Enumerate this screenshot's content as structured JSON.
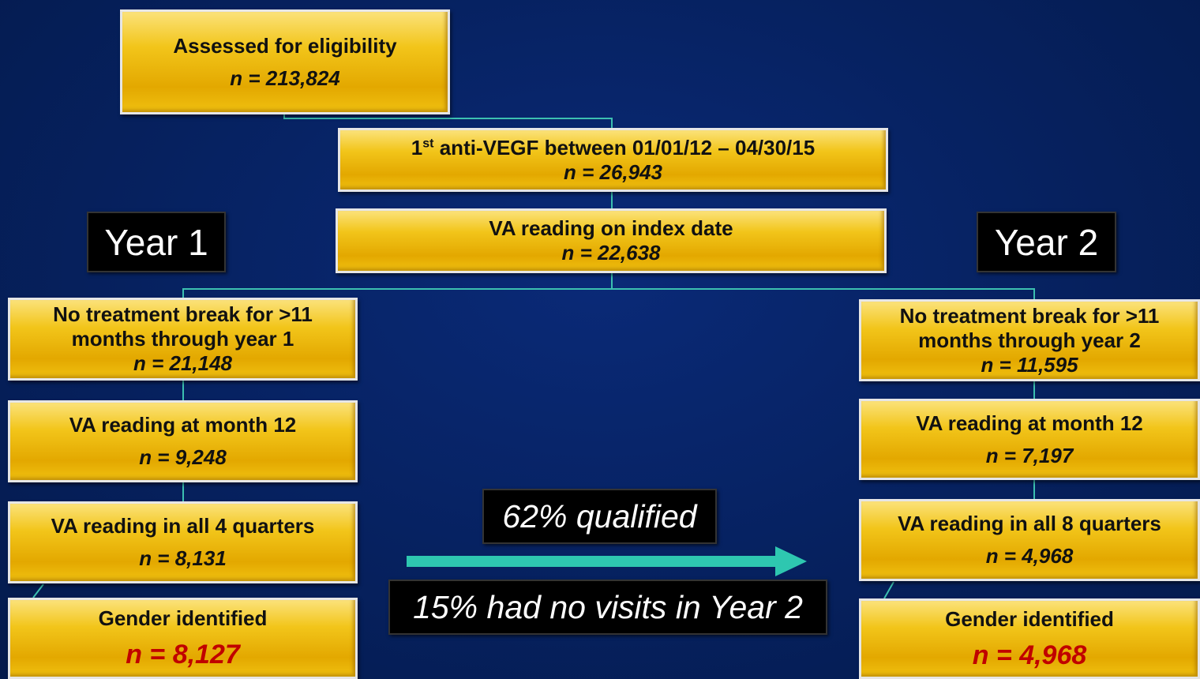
{
  "nodes": [
    {
      "label": "Assessed for eligibility",
      "count": "n = 213,824"
    },
    {
      "label_number": "1",
      "label_sup": "st",
      "label_rest": " anti-VEGF between 01/01/12 – 04/30/15",
      "count": "n = 26,943"
    },
    {
      "label": "VA reading on index date",
      "count": "n = 22,638"
    }
  ],
  "year1": {
    "title": "Year 1",
    "nodes": [
      {
        "label_lines": [
          "No treatment break for >11",
          "months through year 1"
        ],
        "count": "n = 21,148"
      },
      {
        "label": "VA reading at month 12",
        "count": "n = 9,248"
      },
      {
        "label": "VA reading in all 4 quarters",
        "count": "n = 8,131"
      },
      {
        "label": "Gender identified",
        "count": "n = 8,127"
      }
    ]
  },
  "year2": {
    "title": "Year 2",
    "nodes": [
      {
        "label_lines": [
          "No treatment break for >11",
          "months through year 2"
        ],
        "count": "n = 11,595"
      },
      {
        "label": "VA reading at month 12",
        "count": "n = 7,197"
      },
      {
        "label": "VA reading in all 8 quarters",
        "count": "n = 4,968"
      },
      {
        "label": "Gender identified",
        "count": "n = 4,968"
      }
    ]
  },
  "callouts": {
    "qualified": "62% qualified",
    "no_visits": "15% had no visits in Year 2"
  }
}
